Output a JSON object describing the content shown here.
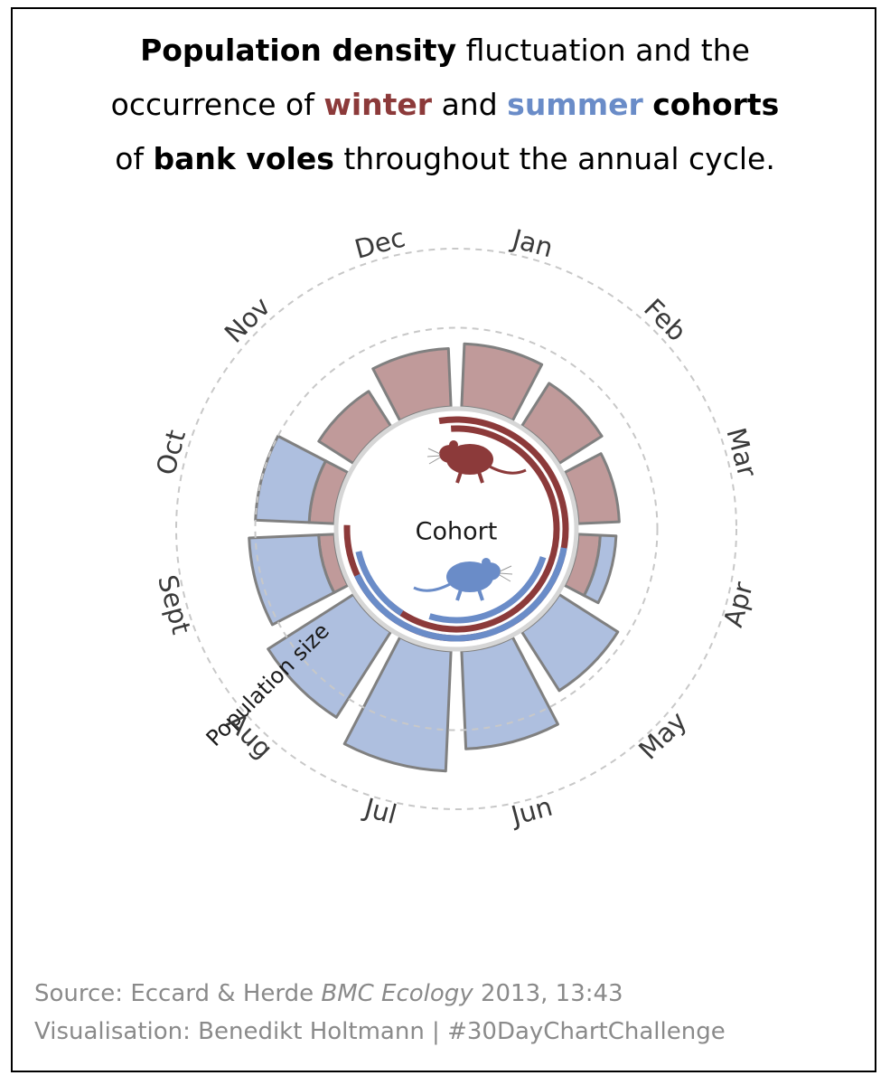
{
  "title": {
    "part1_bold": "Population density",
    "part2": " fluctuation and the",
    "part3": "occurrence of ",
    "winter": "winter",
    "part4": " and ",
    "summer": "summer",
    "part5_bold": "cohorts",
    "part6": "of ",
    "part7_bold": "bank voles",
    "part8": " throughout the annual cycle."
  },
  "colors": {
    "winter": "#8c3a3a",
    "summer": "#6a8cc8",
    "winter_fill": "#c09a9a",
    "summer_fill": "#aebfdf",
    "bar_stroke": "#808080",
    "guide": "#c8c8c8"
  },
  "center_label": "Cohort",
  "axis_label": "Population size",
  "icons": {
    "winter_vole": "vole-silhouette-icon",
    "summer_vole": "vole-silhouette-icon"
  },
  "chart_data": {
    "type": "radial-stacked-bar",
    "categories": [
      "Jan",
      "Feb",
      "Mar",
      "Apr",
      "May",
      "Jun",
      "Jul",
      "Aug",
      "Sept",
      "Oct",
      "Nov",
      "Dec"
    ],
    "series": [
      {
        "name": "winter",
        "values": [
          4.0,
          3.2,
          2.6,
          1.4,
          0,
          0,
          0,
          0,
          1.0,
          1.6,
          2.6,
          3.7
        ]
      },
      {
        "name": "summer",
        "values": [
          0,
          0,
          0,
          1.0,
          4.4,
          6.2,
          7.6,
          6.4,
          4.4,
          3.4,
          0,
          0
        ]
      }
    ],
    "radial_guides": [
      5,
      10
    ],
    "inner_arcs": {
      "winter": [
        [
          -9,
          272
        ],
        [
          -3,
          222
        ]
      ],
      "summer": [
        [
          100,
          245
        ],
        [
          213,
          257
        ],
        [
          108,
          197
        ]
      ]
    }
  },
  "source": {
    "prefix": "Source: Eccard & Herde ",
    "journal": "BMC Ecology",
    "suffix": " 2013, 13:43",
    "visualisation": "Visualisation: Benedikt Holtmann | #30DayChartChallenge"
  }
}
